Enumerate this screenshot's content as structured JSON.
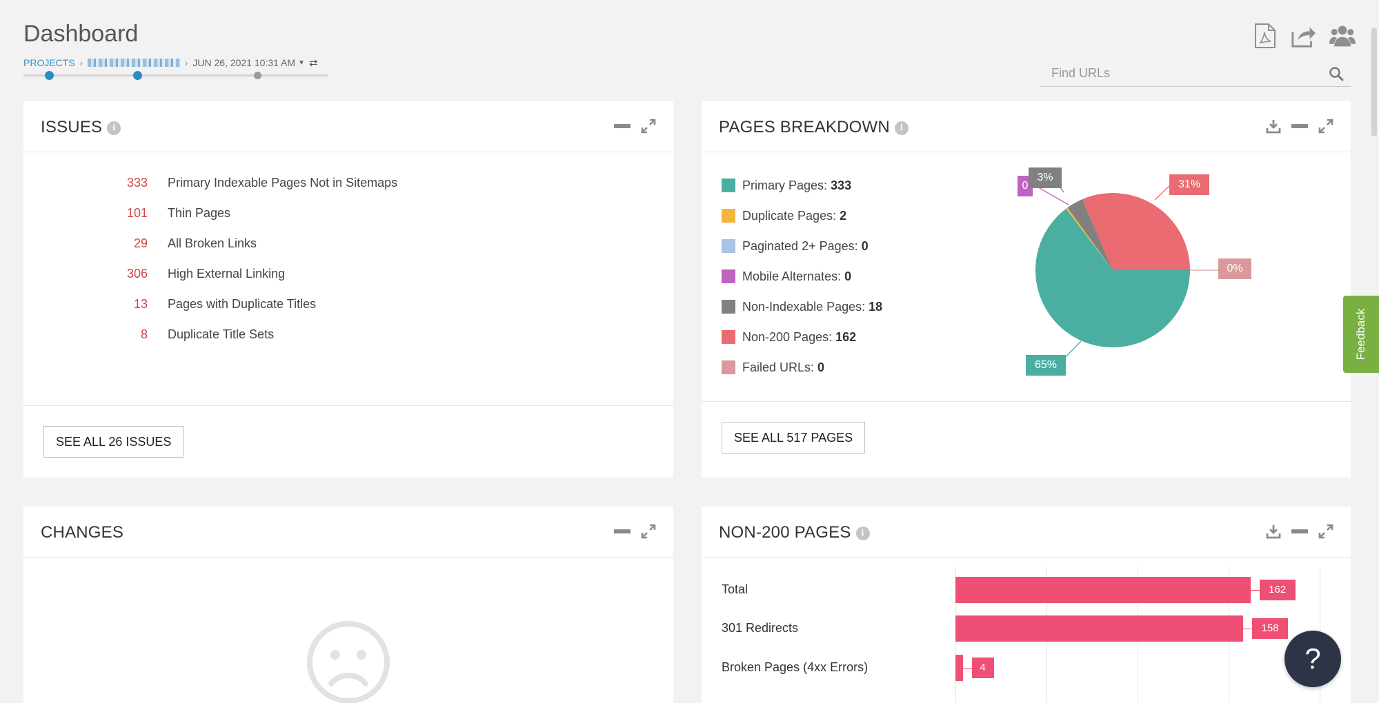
{
  "header": {
    "title": "Dashboard",
    "breadcrumb": {
      "projects": "PROJECTS",
      "date": "JUN 26, 2021 10:31 AM"
    }
  },
  "search": {
    "placeholder": "Find URLs"
  },
  "top_icons": [
    "pdf-icon",
    "share-icon",
    "users-icon"
  ],
  "issues": {
    "title": "ISSUES",
    "items": [
      {
        "count": "333",
        "label": "Primary Indexable Pages Not in Sitemaps"
      },
      {
        "count": "101",
        "label": "Thin Pages"
      },
      {
        "count": "29",
        "label": "All Broken Links"
      },
      {
        "count": "306",
        "label": "High External Linking"
      },
      {
        "count": "13",
        "label": "Pages with Duplicate Titles"
      },
      {
        "count": "8",
        "label": "Duplicate Title Sets"
      }
    ],
    "button": "SEE ALL 26 ISSUES",
    "count_color": "#d04545"
  },
  "pages_breakdown": {
    "title": "PAGES BREAKDOWN",
    "legend": [
      {
        "label": "Primary Pages:",
        "value": "333",
        "color": "#4aaea0"
      },
      {
        "label": "Duplicate Pages:",
        "value": "2",
        "color": "#f3b63b"
      },
      {
        "label": "Paginated 2+ Pages:",
        "value": "0",
        "color": "#a9c4e4"
      },
      {
        "label": "Mobile Alternates:",
        "value": "0",
        "color": "#c062c0"
      },
      {
        "label": "Non-Indexable Pages:",
        "value": "18",
        "color": "#808080"
      },
      {
        "label": "Non-200 Pages:",
        "value": "162",
        "color": "#ea6b72"
      },
      {
        "label": "Failed URLs:",
        "value": "0",
        "color": "#d9999c"
      }
    ],
    "button": "SEE ALL 517 PAGES"
  },
  "changes": {
    "title": "CHANGES",
    "empty_icon": "sad-face-icon"
  },
  "non200": {
    "title": "NON-200 PAGES",
    "bar_color": "#ef4f74"
  },
  "chart_data": [
    {
      "type": "pie",
      "categories": [
        "Primary Pages",
        "Duplicate Pages",
        "Paginated 2+ Pages",
        "Mobile Alternates",
        "Non-Indexable Pages",
        "Non-200 Pages",
        "Failed URLs"
      ],
      "values": [
        333,
        2,
        0,
        0,
        18,
        162,
        0
      ],
      "data_labels": [
        "65%",
        "",
        "",
        "0",
        "3%",
        "31%",
        "0%"
      ],
      "colors": [
        "#4aaea0",
        "#f3b63b",
        "#a9c4e4",
        "#c062c0",
        "#808080",
        "#ea6b72",
        "#d9999c"
      ]
    },
    {
      "type": "bar",
      "orientation": "horizontal",
      "categories": [
        "Total",
        "301 Redirects",
        "Broken Pages (4xx Errors)"
      ],
      "values": [
        162,
        158,
        4
      ],
      "xlim": [
        0,
        200
      ],
      "grid": true
    }
  ],
  "widgets": {
    "feedback": "Feedback",
    "help": "?"
  }
}
